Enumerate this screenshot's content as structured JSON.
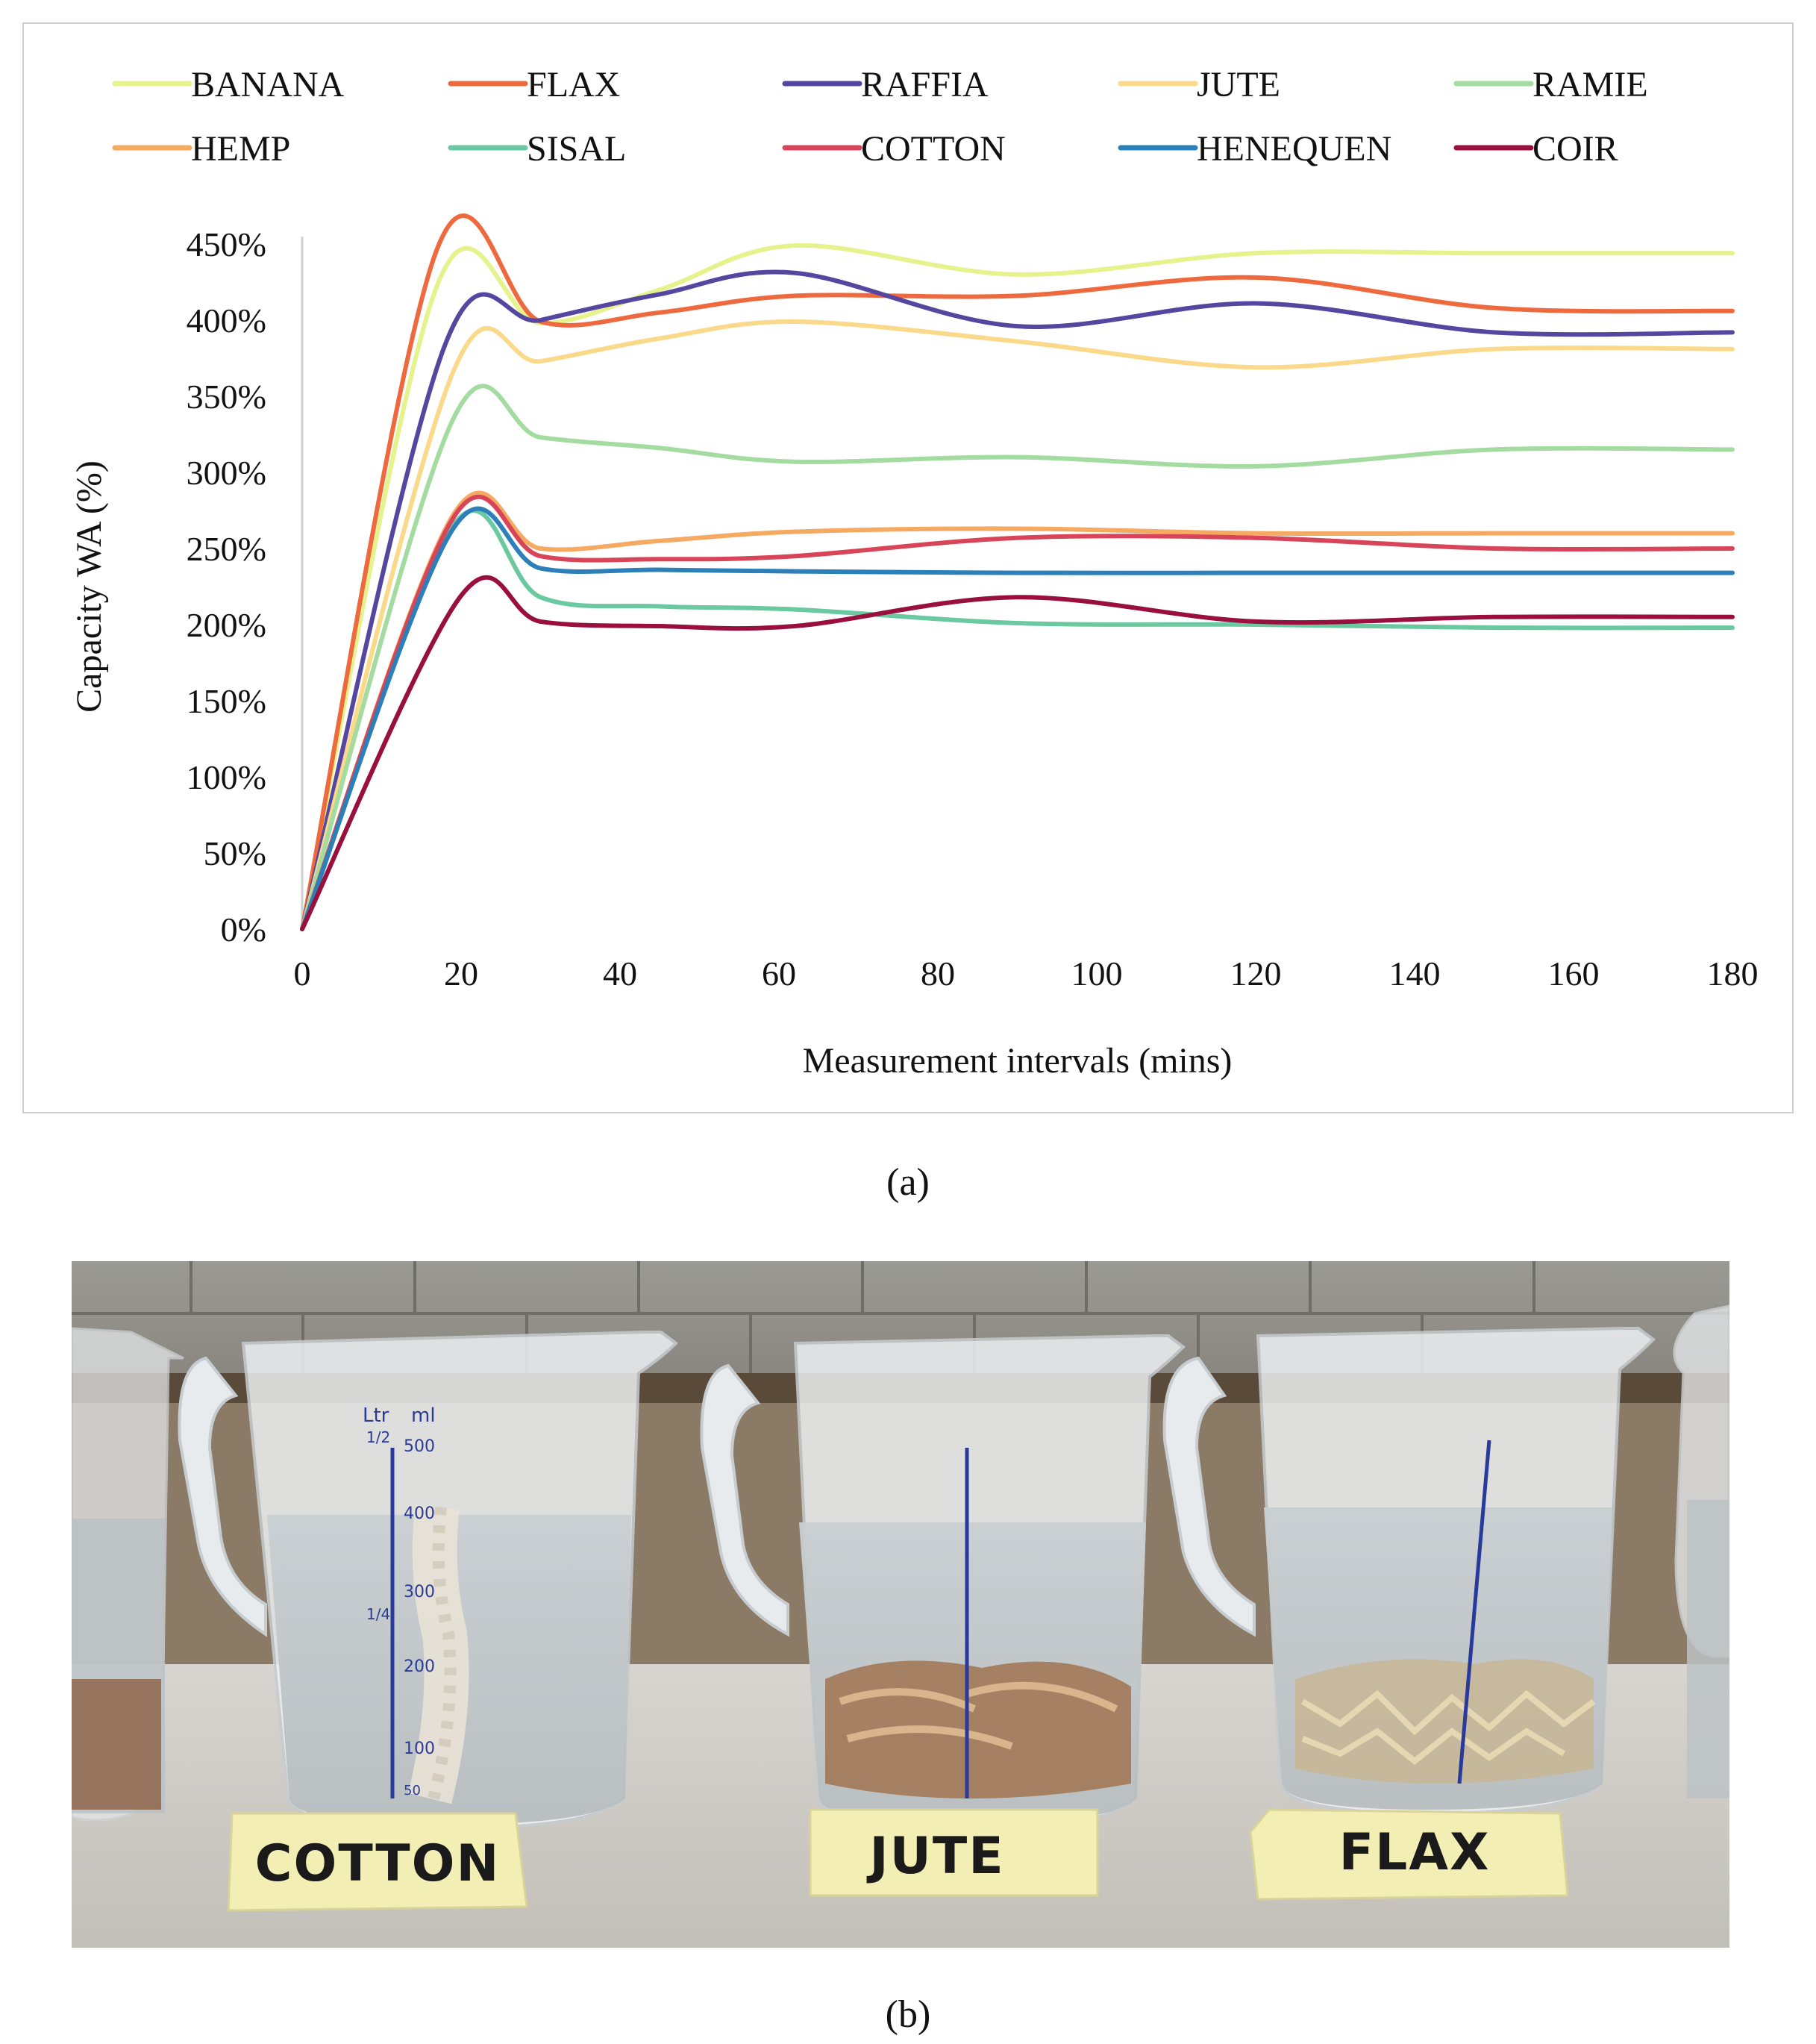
{
  "chart_data": {
    "type": "line",
    "title": "",
    "xlabel": "Measurement intervals (mins)",
    "ylabel": "Capacity WA (%)",
    "xlim": [
      0,
      180
    ],
    "ylim": [
      0,
      450
    ],
    "x_ticks": [
      "0",
      "20",
      "40",
      "60",
      "80",
      "100",
      "120",
      "140",
      "160",
      "180"
    ],
    "y_ticks": [
      "0%",
      "50%",
      "100%",
      "150%",
      "200%",
      "250%",
      "300%",
      "350%",
      "400%",
      "450%"
    ],
    "grid": false,
    "legend_position": "top",
    "series": [
      {
        "name": "BANANA",
        "color": "#e6f28c",
        "points": [
          [
            0,
            0
          ],
          [
            17,
            423
          ],
          [
            30,
            398
          ],
          [
            45,
            420
          ],
          [
            62,
            449
          ],
          [
            90,
            430
          ],
          [
            120,
            444
          ],
          [
            150,
            444
          ],
          [
            180,
            444
          ]
        ]
      },
      {
        "name": "FLAX",
        "color": "#ee6a3e",
        "points": [
          [
            0,
            0
          ],
          [
            17,
            447
          ],
          [
            30,
            399
          ],
          [
            45,
            405
          ],
          [
            62,
            416
          ],
          [
            90,
            416
          ],
          [
            120,
            428
          ],
          [
            150,
            408
          ],
          [
            180,
            406
          ]
        ]
      },
      {
        "name": "RAFFIA",
        "color": "#5547a0",
        "points": [
          [
            0,
            0
          ],
          [
            18,
            384
          ],
          [
            30,
            400
          ],
          [
            45,
            417
          ],
          [
            62,
            431
          ],
          [
            90,
            396
          ],
          [
            120,
            411
          ],
          [
            150,
            392
          ],
          [
            180,
            392
          ]
        ]
      },
      {
        "name": "JUTE",
        "color": "#fbd98a",
        "points": [
          [
            0,
            0
          ],
          [
            19,
            366
          ],
          [
            30,
            373
          ],
          [
            45,
            388
          ],
          [
            62,
            399
          ],
          [
            90,
            386
          ],
          [
            120,
            369
          ],
          [
            150,
            381
          ],
          [
            180,
            381
          ]
        ]
      },
      {
        "name": "RAMIE",
        "color": "#a3dba1",
        "points": [
          [
            0,
            0
          ],
          [
            19,
            335
          ],
          [
            30,
            323
          ],
          [
            45,
            316
          ],
          [
            62,
            307
          ],
          [
            90,
            310
          ],
          [
            120,
            304
          ],
          [
            150,
            315
          ],
          [
            180,
            315
          ]
        ]
      },
      {
        "name": "HEMP",
        "color": "#f6a960",
        "points": [
          [
            0,
            0
          ],
          [
            19,
            272
          ],
          [
            30,
            250
          ],
          [
            45,
            255
          ],
          [
            62,
            261
          ],
          [
            90,
            263
          ],
          [
            120,
            260
          ],
          [
            150,
            260
          ],
          [
            180,
            260
          ]
        ]
      },
      {
        "name": "SISAL",
        "color": "#6ac9a0",
        "points": [
          [
            0,
            0
          ],
          [
            19,
            265
          ],
          [
            30,
            218
          ],
          [
            45,
            212
          ],
          [
            62,
            210
          ],
          [
            90,
            201
          ],
          [
            120,
            200
          ],
          [
            150,
            198
          ],
          [
            180,
            198
          ]
        ]
      },
      {
        "name": "COTTON",
        "color": "#d84558",
        "points": [
          [
            0,
            0
          ],
          [
            19,
            270
          ],
          [
            30,
            245
          ],
          [
            45,
            243
          ],
          [
            62,
            245
          ],
          [
            90,
            257
          ],
          [
            120,
            257
          ],
          [
            150,
            250
          ],
          [
            180,
            250
          ]
        ]
      },
      {
        "name": "HENEQUEN",
        "color": "#2c7fb8",
        "points": [
          [
            0,
            0
          ],
          [
            19,
            263
          ],
          [
            30,
            237
          ],
          [
            45,
            236
          ],
          [
            62,
            235
          ],
          [
            90,
            234
          ],
          [
            120,
            234
          ],
          [
            150,
            234
          ],
          [
            180,
            234
          ]
        ]
      },
      {
        "name": "COIR",
        "color": "#99103e",
        "points": [
          [
            0,
            0
          ],
          [
            20,
            219
          ],
          [
            30,
            202
          ],
          [
            45,
            199
          ],
          [
            62,
            199
          ],
          [
            90,
            218
          ],
          [
            120,
            202
          ],
          [
            150,
            205
          ],
          [
            180,
            205
          ]
        ]
      }
    ]
  },
  "captions": {
    "a": "(a)",
    "b": "(b)"
  },
  "photo": {
    "labels": [
      "COTTON",
      "JUTE",
      "FLAX"
    ],
    "jug_markings": {
      "unit_left": "Ltr",
      "unit_right": "ml",
      "half": "1/2",
      "quarter": "1/4",
      "values": [
        "500",
        "400",
        "300",
        "200",
        "100",
        "50"
      ]
    }
  }
}
